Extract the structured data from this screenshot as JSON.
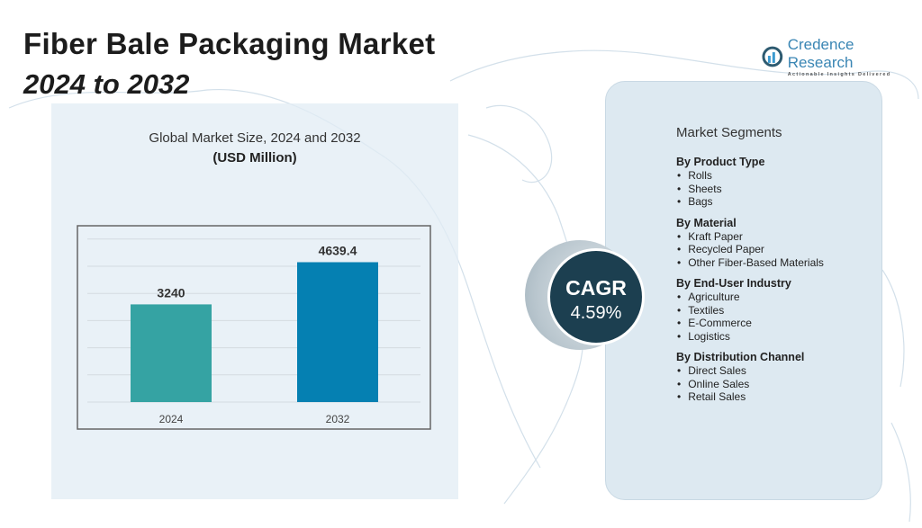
{
  "header": {
    "title": "Fiber Bale Packaging Market",
    "subtitle": "2024 to 2032"
  },
  "logo": {
    "name": "Credence Research",
    "tagline": "Actionable Insights Delivered",
    "icon": "bar-chart-circle-icon"
  },
  "colors": {
    "bar_2024": "#35a3a3",
    "bar_2032": "#0580b2",
    "cagr_circle": "#1c3f50",
    "panel": "#dde9f1"
  },
  "chart_data": {
    "type": "bar",
    "title": "Global Market Size, 2024 and 2032",
    "unit": "(USD Million)",
    "categories": [
      "2024",
      "2032"
    ],
    "values": [
      3240,
      4639.4
    ],
    "value_labels": [
      "3240",
      "4639.4"
    ],
    "ylim": [
      0,
      5400
    ],
    "grid": true,
    "xlabel": "",
    "ylabel": ""
  },
  "cagr": {
    "label": "CAGR",
    "value": "4.59%"
  },
  "segments": {
    "title": "Market Segments",
    "groups": [
      {
        "heading": "By Product Type",
        "items": [
          "Rolls",
          "Sheets",
          "Bags"
        ]
      },
      {
        "heading": "By Material",
        "items": [
          "Kraft Paper",
          "Recycled Paper",
          "Other Fiber-Based Materials"
        ]
      },
      {
        "heading": "By End-User Industry",
        "items": [
          "Agriculture",
          "Textiles",
          "E-Commerce",
          "Logistics"
        ]
      },
      {
        "heading": "By Distribution Channel",
        "items": [
          "Direct Sales",
          "Online Sales",
          "Retail Sales"
        ]
      }
    ]
  }
}
